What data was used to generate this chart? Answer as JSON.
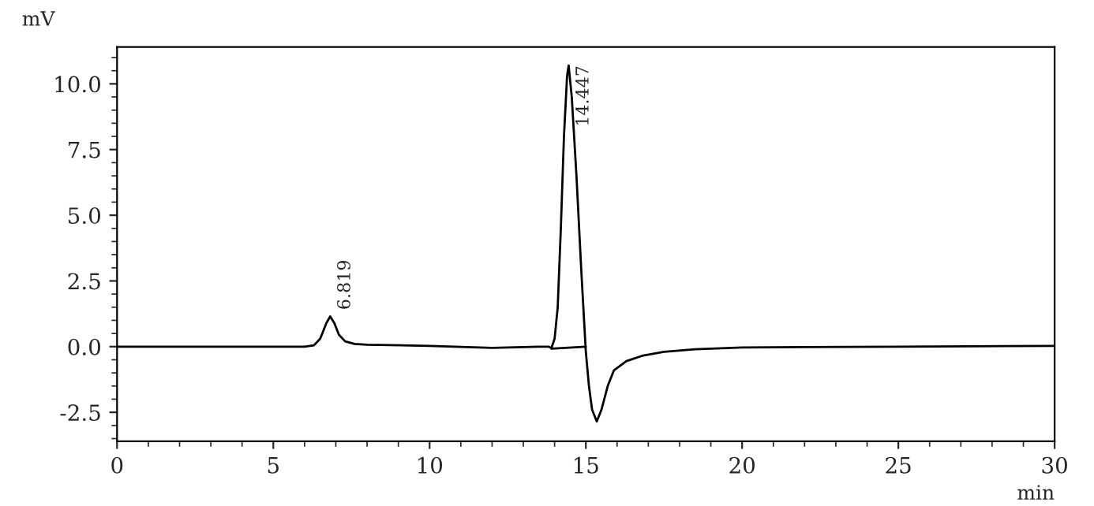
{
  "chart_data": {
    "type": "line",
    "xlabel": "min",
    "ylabel": "mV",
    "xlim": [
      0,
      30
    ],
    "xticks": [
      0,
      5,
      10,
      15,
      20,
      25,
      30
    ],
    "ylim": [
      -3.6,
      11.4
    ],
    "yticks": [
      {
        "value": -2.5,
        "label": "-2.5"
      },
      {
        "value": 0,
        "label": "0.0"
      },
      {
        "value": 2.5,
        "label": "2.5"
      },
      {
        "value": 5,
        "label": "5.0"
      },
      {
        "value": 7.5,
        "label": "7.5"
      },
      {
        "value": 10,
        "label": "10.0"
      }
    ],
    "grid": false,
    "legend": false,
    "marker": "none",
    "line_style": "solid",
    "series": [
      {
        "color": "#000000",
        "x": [
          0,
          6.0,
          6.3,
          6.5,
          6.7,
          6.82,
          6.95,
          7.1,
          7.3,
          7.6,
          8,
          10,
          12,
          13.5,
          13.8,
          13.9,
          14.0,
          14.1,
          14.2,
          14.3,
          14.4,
          14.45,
          14.55,
          14.7,
          14.85,
          15.0,
          15.1,
          15.2,
          15.35,
          15.5,
          15.7,
          15.9,
          16.3,
          16.8,
          17.5,
          18.5,
          20,
          25,
          30
        ],
        "values": [
          0,
          0,
          0.05,
          0.3,
          0.9,
          1.15,
          0.9,
          0.45,
          0.2,
          0.1,
          0.07,
          0.03,
          -0.05,
          0,
          0.0,
          -0.05,
          0.3,
          1.5,
          4.5,
          8.0,
          10.3,
          10.7,
          9.5,
          6.5,
          3.0,
          -0.2,
          -1.5,
          -2.4,
          -2.85,
          -2.4,
          -1.5,
          -0.9,
          -0.55,
          -0.35,
          -0.2,
          -0.1,
          -0.03,
          0,
          0.03
        ]
      },
      {
        "color": "#000000",
        "x": [
          13.9,
          15.0
        ],
        "values": [
          -0.08,
          0.0
        ]
      }
    ],
    "annotations": [
      {
        "text": "6.819",
        "x": 6.819,
        "y": 1.15
      },
      {
        "text": "14.447",
        "x": 14.447,
        "y": 10.7
      }
    ]
  }
}
